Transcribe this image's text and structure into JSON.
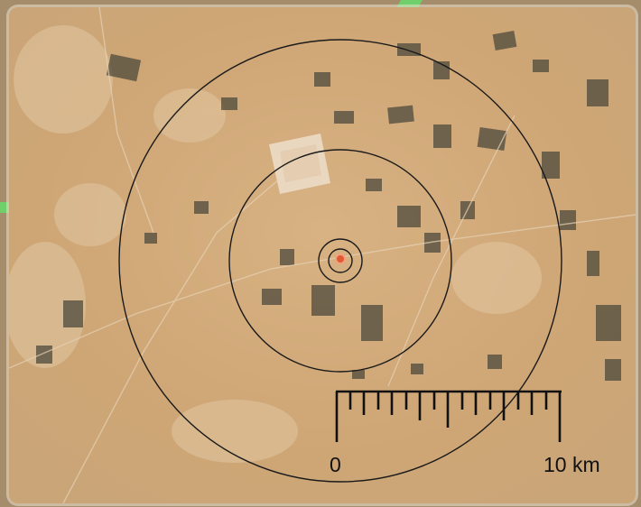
{
  "map": {
    "scale_bar": {
      "start_label": "0",
      "end_label": "10 km"
    },
    "rings": {
      "count": 4,
      "stroke_color": "#1a1a1a"
    },
    "center_marker": {
      "icon": "location-dot-icon",
      "color": "#e05a33"
    },
    "colors": {
      "terrain": "#d2aa78",
      "field_patch": "#4c4a3c",
      "edge_highlight": "#6fcf6a"
    }
  }
}
